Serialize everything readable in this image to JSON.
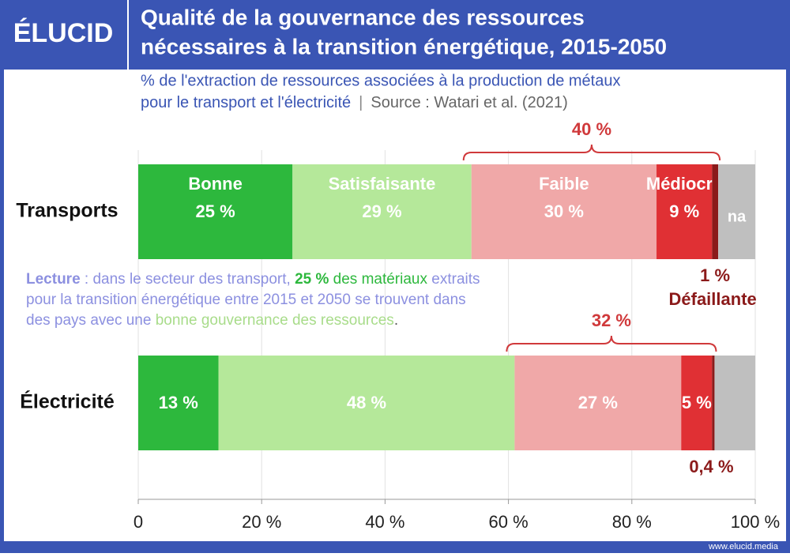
{
  "brand": "ÉLUCID",
  "footer": "www.elucid.media",
  "chart_data": {
    "type": "stacked-bar-horizontal",
    "title": [
      "Qualité de la gouvernance des ressources",
      "nécessaires à la transition énergétique, 2015-2050"
    ],
    "subtitle": [
      "% de l'extraction de ressources associées à la production de métaux",
      "pour le transport et l'électricité"
    ],
    "separator": "|",
    "source": "Source : Watari et al. (2021)",
    "categories": [
      "Transports",
      "Électricité"
    ],
    "series": [
      {
        "name": "Bonne",
        "color": "#2db83d",
        "values": [
          25,
          13
        ],
        "value_labels": [
          "25 %",
          "13 %"
        ]
      },
      {
        "name": "Satisfaisante",
        "color": "#b5e89a",
        "values": [
          29,
          48
        ],
        "value_labels": [
          "29 %",
          "48 %"
        ]
      },
      {
        "name": "Faible",
        "color": "#f0a8a8",
        "values": [
          30,
          27
        ],
        "value_labels": [
          "30 %",
          "27 %"
        ]
      },
      {
        "name": "Médiocre",
        "color": "#e03034",
        "values": [
          9,
          5
        ],
        "value_labels": [
          "9 %",
          "5 %"
        ]
      },
      {
        "name": "Défaillante",
        "color": "#8b1a1a",
        "values": [
          1,
          0.4
        ],
        "value_labels": [
          "1 %",
          "0,4 %"
        ]
      },
      {
        "name": "na",
        "color": "#bfbfbf",
        "values": [
          6,
          6.6
        ]
      }
    ],
    "bracket_labels": [
      "40 %",
      "32 %"
    ],
    "xlim": [
      0,
      100
    ],
    "xticks": [
      0,
      {
        "value": 20,
        "label": "20 %"
      },
      {
        "value": 40,
        "label": "40 %"
      },
      {
        "value": 60,
        "label": "60 %"
      },
      {
        "value": 80,
        "label": "80 %"
      },
      {
        "value": 100,
        "label": "100 %"
      }
    ],
    "grid": true,
    "note": [
      [
        {
          "text": "Lecture",
          "color": "#8c90e0",
          "weight": "bold"
        },
        {
          "text": " : dans le secteur des transport, ",
          "color": "#8c90e0"
        },
        {
          "text": "25 %",
          "color": "#2db83d",
          "weight": "bold"
        },
        {
          "text": " des matériaux",
          "color": "#2db83d"
        },
        {
          "text": " extraits",
          "color": "#8c90e0"
        }
      ],
      [
        {
          "text": "pour la transition énergétique entre 2015 et 2050 se trouvent dans",
          "color": "#8c90e0"
        }
      ],
      [
        {
          "text": "des pays avec une ",
          "color": "#8c90e0"
        },
        {
          "text": "bonne gouvernance des ressources",
          "color": "#a8dc8a"
        },
        {
          "text": ".",
          "color": "#555555"
        }
      ]
    ]
  }
}
